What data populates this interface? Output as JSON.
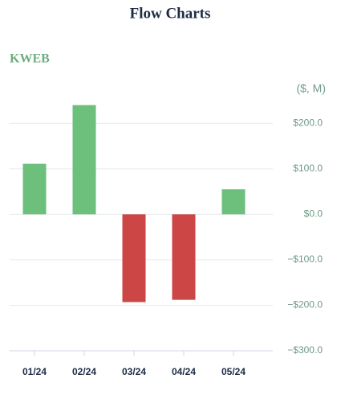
{
  "header": {
    "title": "Flow Charts"
  },
  "chart_data": {
    "type": "bar",
    "title": "KWEB",
    "y_axis_label": "($, M)",
    "categories": [
      "01/24",
      "02/24",
      "03/24",
      "04/24",
      "05/24"
    ],
    "values": [
      111,
      240,
      -193,
      -188,
      55
    ],
    "colors": [
      "#6dbf7c",
      "#6dbf7c",
      "#cc4646",
      "#cc4646",
      "#6dbf7c"
    ],
    "ylim": [
      -300,
      250
    ],
    "yticks": [
      {
        "value": 200,
        "label": "$200.0"
      },
      {
        "value": 100,
        "label": "$100.0"
      },
      {
        "value": 0,
        "label": "$0.0"
      },
      {
        "value": -100,
        "label": "−$100.0"
      },
      {
        "value": -200,
        "label": "−$200.0"
      },
      {
        "value": -300,
        "label": "−$300.0"
      }
    ],
    "grid": true
  }
}
